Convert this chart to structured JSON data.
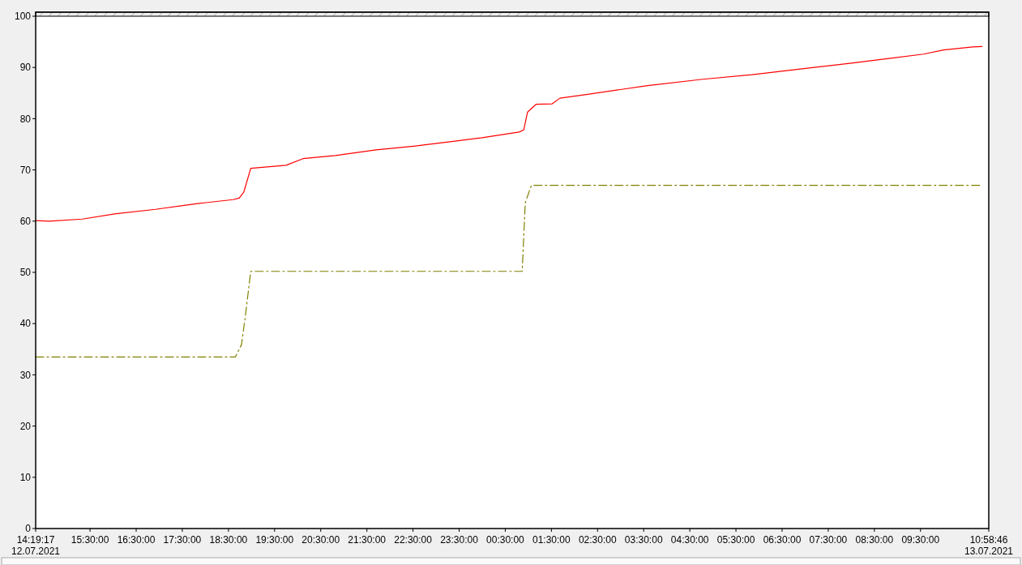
{
  "chart_data": {
    "type": "line",
    "xlim": [
      "2021-07-12T14:19:17",
      "2021-07-13T10:58:46"
    ],
    "xticks": [
      {
        "value": "2021-07-12T14:19:17",
        "label": "14:19:17 12.07.2021"
      },
      {
        "value": "2021-07-12T15:30",
        "label": "15:30:00"
      },
      {
        "value": "2021-07-12T16:30",
        "label": "16:30:00"
      },
      {
        "value": "2021-07-12T17:30",
        "label": "17:30:00"
      },
      {
        "value": "2021-07-12T18:30",
        "label": "18:30:00"
      },
      {
        "value": "2021-07-12T19:30",
        "label": "19:30:00"
      },
      {
        "value": "2021-07-12T20:30",
        "label": "20:30:00"
      },
      {
        "value": "2021-07-12T21:30",
        "label": "21:30:00"
      },
      {
        "value": "2021-07-12T22:30",
        "label": "22:30:00"
      },
      {
        "value": "2021-07-12T23:30",
        "label": "23:30:00"
      },
      {
        "value": "2021-07-13T00:30",
        "label": "00:30:00"
      },
      {
        "value": "2021-07-13T01:30",
        "label": "01:30:00"
      },
      {
        "value": "2021-07-13T02:30",
        "label": "02:30:00"
      },
      {
        "value": "2021-07-13T03:30",
        "label": "03:30:00"
      },
      {
        "value": "2021-07-13T04:30",
        "label": "04:30:00"
      },
      {
        "value": "2021-07-13T05:30",
        "label": "05:30:00"
      },
      {
        "value": "2021-07-13T06:30",
        "label": "06:30:00"
      },
      {
        "value": "2021-07-13T07:30",
        "label": "07:30:00"
      },
      {
        "value": "2021-07-13T08:30",
        "label": "08:30:00"
      },
      {
        "value": "2021-07-13T09:30",
        "label": "09:30:00"
      },
      {
        "value": "2021-07-13T10:58:46",
        "label": "10:58:46 13.07.2021"
      }
    ],
    "ylim": [
      0,
      100
    ],
    "yticks": [
      0,
      10,
      20,
      30,
      40,
      50,
      60,
      70,
      80,
      90,
      100
    ],
    "grid": false,
    "series": [
      {
        "color": "#ff0000",
        "line_style": "solid",
        "x": [
          "2021-07-12T14:19:17",
          "2021-07-12T14:37",
          "2021-07-12T15:20",
          "2021-07-12T16:02",
          "2021-07-12T16:55",
          "2021-07-12T17:48",
          "2021-07-12T18:36",
          "2021-07-12T18:44",
          "2021-07-12T18:50",
          "2021-07-12T18:59",
          "2021-07-12T19:45",
          "2021-07-12T20:07",
          "2021-07-12T20:49",
          "2021-07-12T21:42",
          "2021-07-12T22:35",
          "2021-07-12T23:18",
          "2021-07-13T00:00",
          "2021-07-13T00:48",
          "2021-07-13T00:54",
          "2021-07-13T00:59",
          "2021-07-13T01:10",
          "2021-07-13T01:31",
          "2021-07-13T01:41",
          "2021-07-13T02:19",
          "2021-07-13T03:33",
          "2021-07-13T04:47",
          "2021-07-13T05:51",
          "2021-07-13T07:05",
          "2021-07-13T07:58",
          "2021-07-13T08:51",
          "2021-07-13T09:34",
          "2021-07-13T10:00",
          "2021-07-13T10:38",
          "2021-07-13T10:50"
        ],
        "values": [
          60.1,
          60.0,
          60.4,
          61.4,
          62.3,
          63.4,
          64.2,
          64.5,
          65.7,
          70.3,
          70.9,
          72.2,
          72.8,
          73.9,
          74.7,
          75.5,
          76.3,
          77.4,
          77.8,
          81.3,
          82.8,
          82.9,
          84.0,
          84.8,
          86.4,
          87.7,
          88.6,
          89.9,
          90.8,
          91.8,
          92.6,
          93.4,
          94.0,
          94.1
        ]
      },
      {
        "color": "#808000",
        "line_style": "dashed",
        "x": [
          "2021-07-12T14:19:17",
          "2021-07-12T18:39",
          "2021-07-12T18:47",
          "2021-07-12T18:52",
          "2021-07-12T18:59",
          "2021-07-13T00:52",
          "2021-07-13T00:56",
          "2021-07-13T01:04",
          "2021-07-13T10:48"
        ],
        "values": [
          33.5,
          33.5,
          35.9,
          41.5,
          50.2,
          50.2,
          63.6,
          67.0,
          67.0
        ]
      }
    ]
  }
}
